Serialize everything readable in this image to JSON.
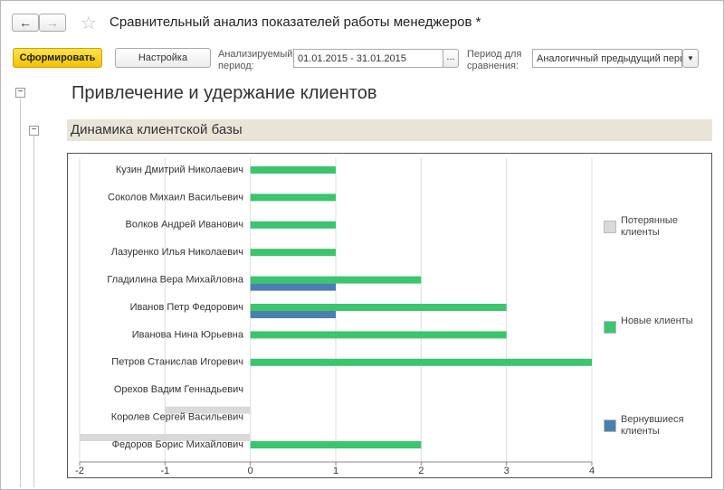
{
  "window": {
    "title": "Сравнительный анализ показателей работы менеджеров *"
  },
  "toolbar": {
    "generate": "Сформировать",
    "settings": "Настройка",
    "period_label": "Анализируемый период:",
    "period_value": "01.01.2015 - 31.01.2015",
    "period_button": "...",
    "compare_label": "Период для сравнения:",
    "compare_value": "Аналогичный предыдущий пери"
  },
  "report": {
    "heading": "Привлечение и удержание клиентов",
    "section": "Динамика клиентской базы"
  },
  "chart_data": {
    "type": "hbar",
    "categories": [
      "Кузин Дмитрий Николаевич",
      "Соколов Михаил Васильевич",
      "Волков Андрей Иванович",
      "Лазуренко Илья Николаевич",
      "Гладилина Вера Михайловна",
      "Иванов Петр Федорович",
      "Иванова Нина Юрьевна",
      "Петров Станислав Игоревич",
      "Орехов Вадим Геннадьевич",
      "Королев Сергей Васильевич",
      "Федоров Борис Михайлович"
    ],
    "series": [
      {
        "name": "Потерянные клиенты",
        "color": "#d9d9d9",
        "values": [
          0,
          0,
          0,
          0,
          0,
          0,
          0,
          0,
          0,
          -1,
          -2
        ]
      },
      {
        "name": "Новые клиенты",
        "color": "#3cc46e",
        "values": [
          1,
          1,
          1,
          1,
          2,
          3,
          3,
          4,
          0,
          0,
          2
        ]
      },
      {
        "name": "Вернувшиеся клиенты",
        "color": "#4a7fb0",
        "values": [
          0,
          0,
          0,
          0,
          1,
          1,
          0,
          0,
          0,
          0,
          0
        ]
      }
    ],
    "xlim": [
      -2,
      4
    ],
    "xticks": [
      -2,
      -1,
      0,
      1,
      2,
      3,
      4
    ],
    "grid": true,
    "legend": "right"
  }
}
